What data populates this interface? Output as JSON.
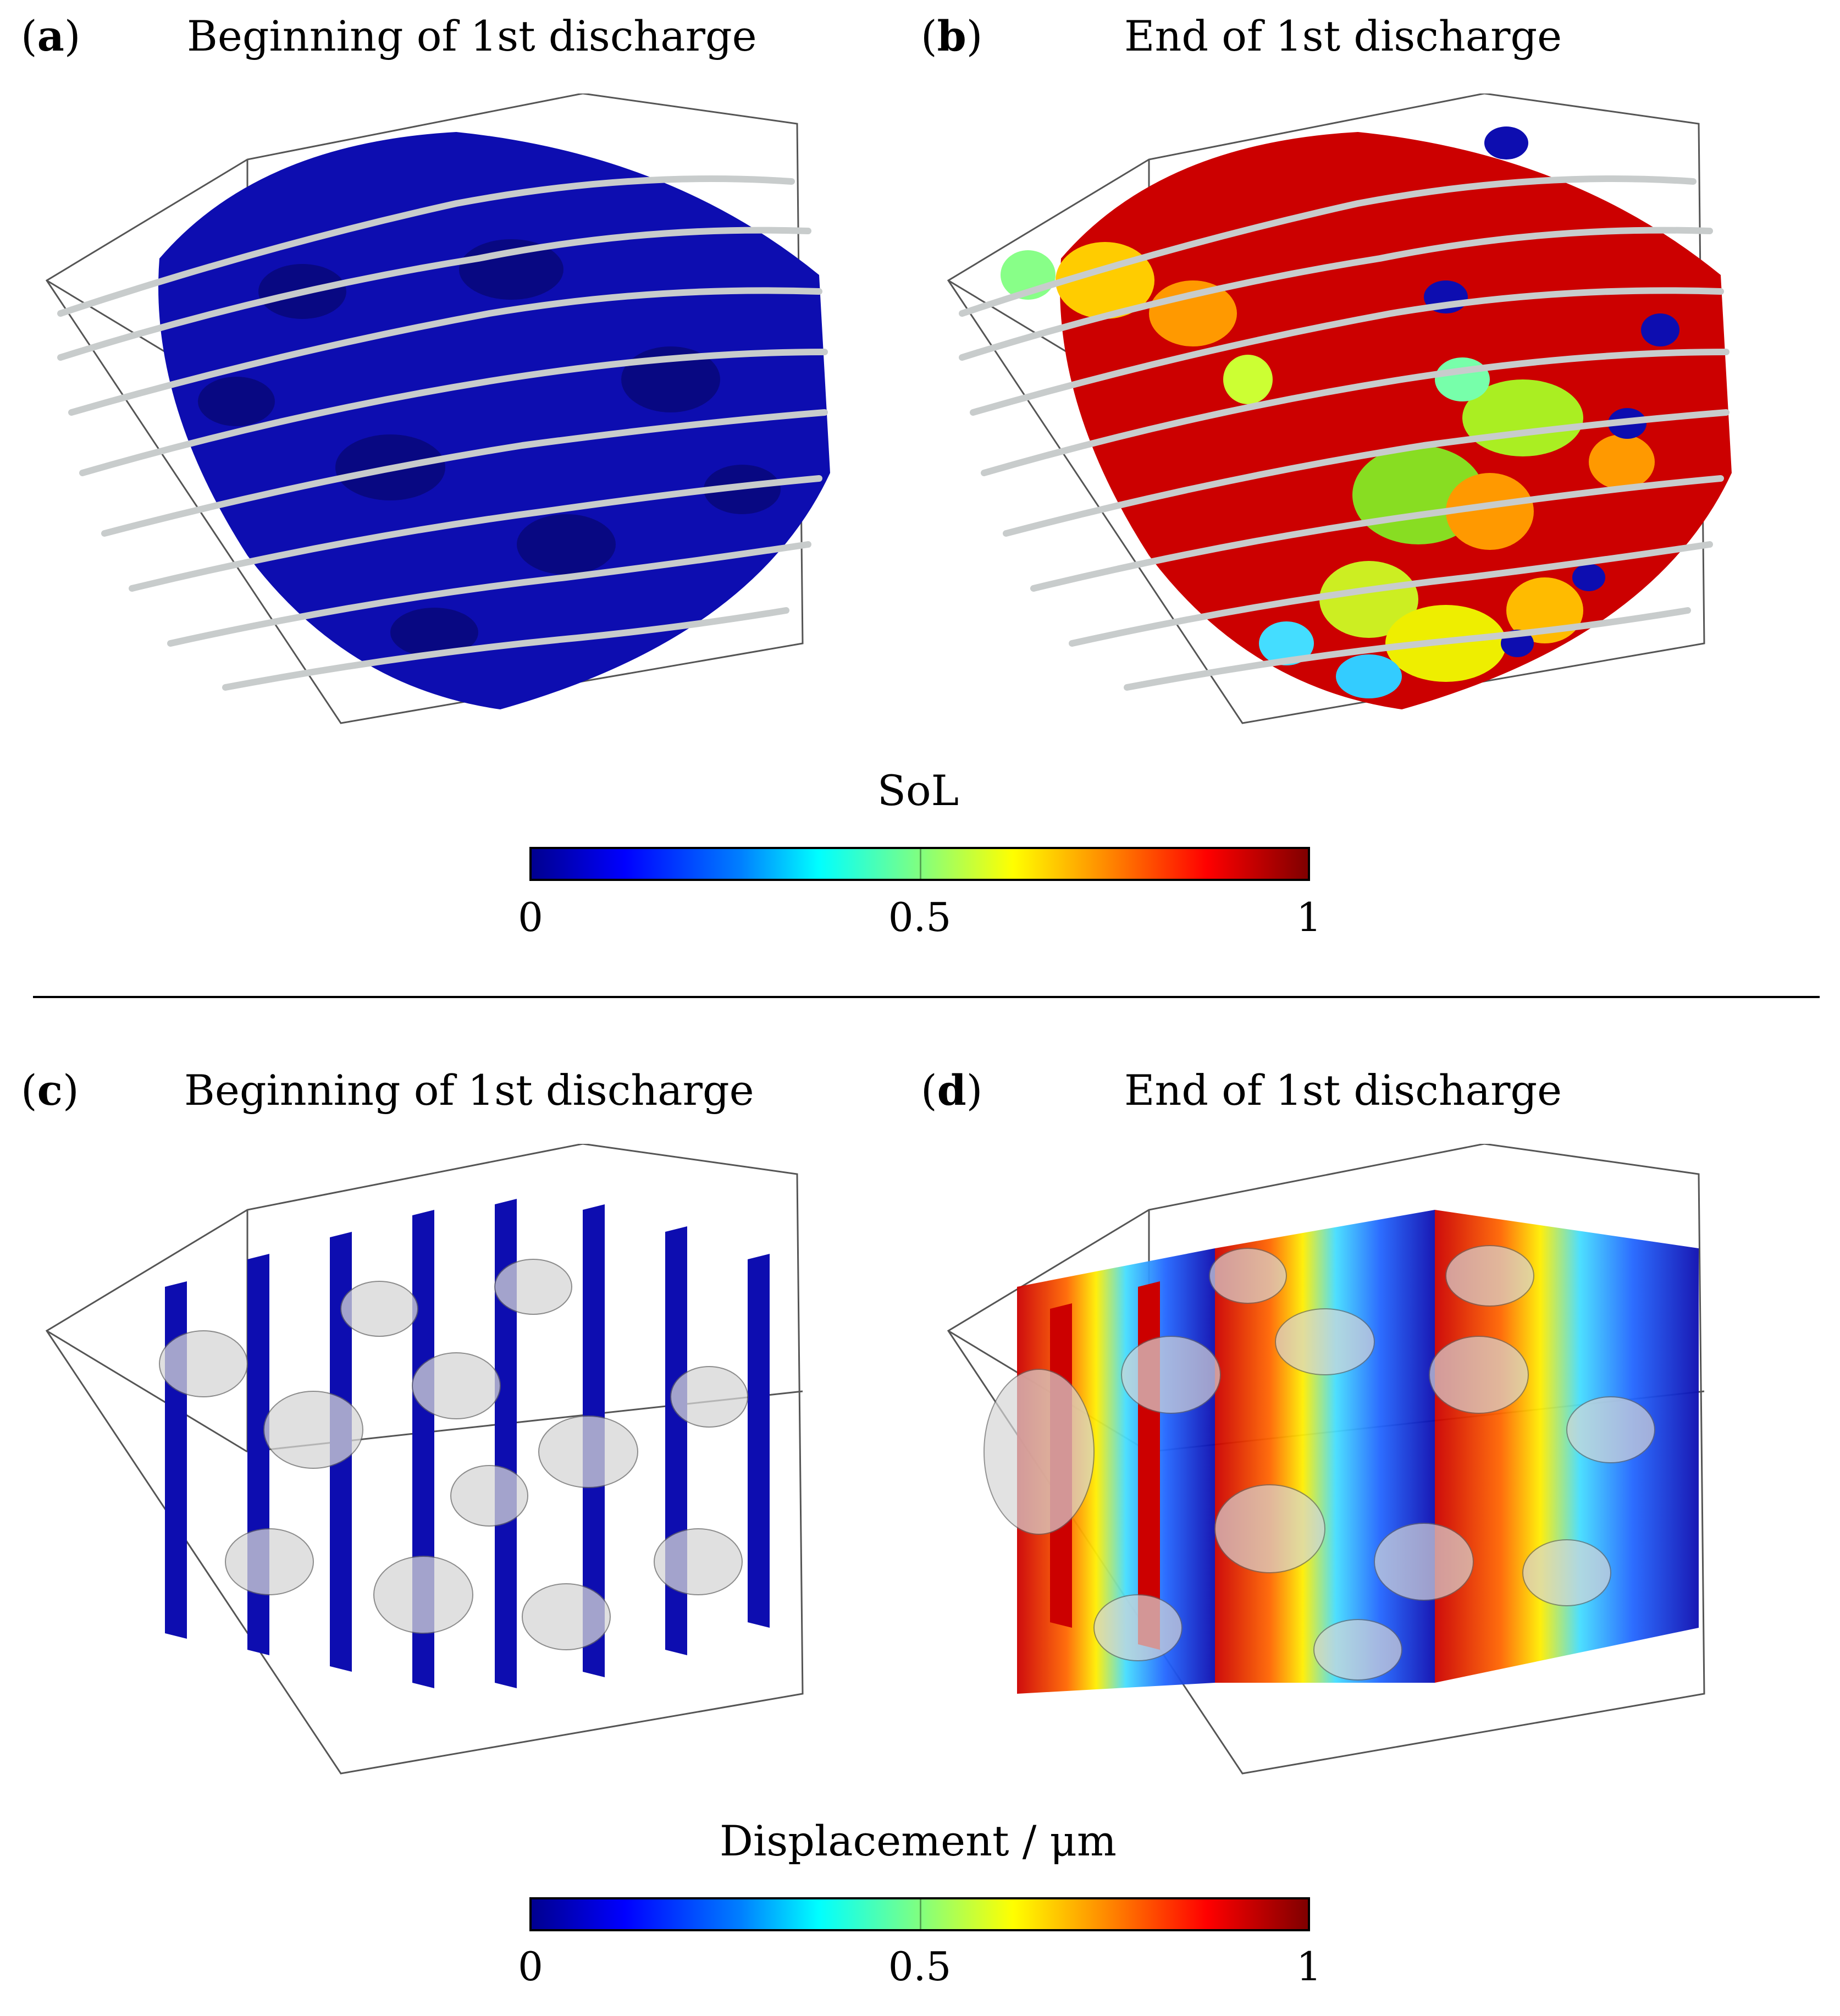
{
  "panels": [
    {
      "letter": "a",
      "title": "Beginning of 1st discharge",
      "map": "sol",
      "state": "begin"
    },
    {
      "letter": "b",
      "title": "End of 1st discharge",
      "map": "sol",
      "state": "end"
    },
    {
      "letter": "c",
      "title": "Beginning of 1st discharge",
      "map": "disp",
      "state": "begin"
    },
    {
      "letter": "d",
      "title": "End of 1st discharge",
      "map": "disp",
      "state": "end"
    }
  ],
  "colorbars": {
    "sol": {
      "title": "SoL",
      "ticks": [
        "0",
        "0.5",
        "1"
      ]
    },
    "disp": {
      "title": "Displacement / μm",
      "ticks": [
        "0",
        "0.5",
        "1"
      ]
    }
  },
  "colors": {
    "low": "#0a0a9e",
    "high": "#cc0000",
    "fibers": "#c8cccc",
    "box": "#555555"
  }
}
